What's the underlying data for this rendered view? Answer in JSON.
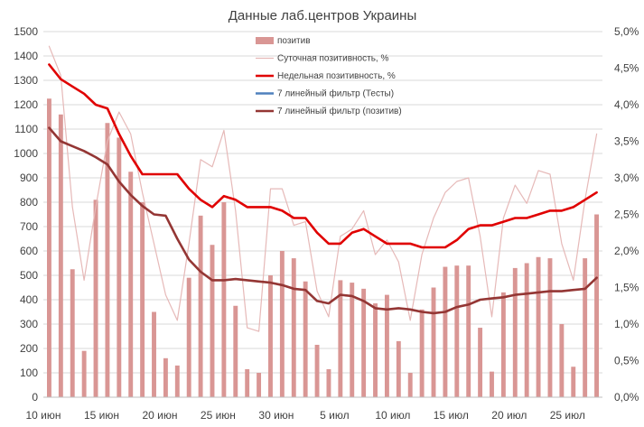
{
  "chart_data": {
    "type": "bar",
    "title": "Данные лаб.центров Украины",
    "x_tick_labels": [
      "10 июн",
      "15 июн",
      "20 июн",
      "25 июн",
      "30 июн",
      "5 июл",
      "10 июл",
      "15 июл",
      "20 июл",
      "25 июл"
    ],
    "x_tick_index": [
      0,
      5,
      10,
      15,
      20,
      25,
      30,
      35,
      40,
      45
    ],
    "ylim_left": [
      0,
      1500
    ],
    "ylim_right": [
      0,
      5.0
    ],
    "left_ticks": [
      "0",
      "100",
      "200",
      "300",
      "400",
      "500",
      "600",
      "700",
      "800",
      "900",
      "1000",
      "1100",
      "1200",
      "1300",
      "1400",
      "1500"
    ],
    "right_ticks": [
      "0,0%",
      "0,5%",
      "1,0%",
      "1,5%",
      "2,0%",
      "2,5%",
      "3,0%",
      "3,5%",
      "4,0%",
      "4,5%",
      "5,0%"
    ],
    "grid": true,
    "legend": {
      "position": "top-center",
      "entries": [
        {
          "label": "позитив",
          "kind": "bar",
          "color": "#d99694"
        },
        {
          "label": "Суточная позитивность, %",
          "kind": "line",
          "color": "#e6b9b8"
        },
        {
          "label": "Недельная позитивность, %",
          "kind": "line",
          "color": "#e00000"
        },
        {
          "label": "7 линейный фильтр (Тесты)",
          "kind": "line",
          "color": "#4f81bd"
        },
        {
          "label": "7 линейный фильтр (позитив)",
          "kind": "line",
          "color": "#943634"
        }
      ]
    },
    "series": [
      {
        "name": "позитив",
        "axis": "left",
        "values": [
          1225,
          1160,
          525,
          190,
          810,
          1125,
          1065,
          925,
          800,
          350,
          160,
          130,
          490,
          745,
          625,
          800,
          375,
          115,
          100,
          500,
          600,
          570,
          475,
          215,
          115,
          480,
          470,
          445,
          385,
          420,
          230,
          100,
          360,
          450,
          535,
          540,
          540,
          285,
          105,
          430,
          530,
          550,
          575,
          570,
          300,
          125,
          570,
          750
        ]
      },
      {
        "name": "Суточная позитивность, %",
        "axis": "right",
        "values": [
          4.8,
          4.4,
          2.6,
          1.6,
          2.6,
          3.5,
          3.9,
          3.6,
          2.8,
          2.1,
          1.4,
          1.05,
          2.1,
          3.25,
          3.15,
          3.65,
          2.55,
          0.95,
          0.9,
          2.85,
          2.85,
          2.35,
          2.4,
          1.45,
          1.1,
          2.2,
          2.3,
          2.55,
          1.95,
          2.15,
          1.85,
          1.05,
          1.95,
          2.45,
          2.8,
          2.95,
          3.0,
          2.2,
          1.1,
          2.45,
          2.9,
          2.65,
          3.1,
          3.05,
          2.1,
          1.6,
          2.7,
          3.6
        ]
      },
      {
        "name": "Недельная позитивность, %",
        "axis": "right",
        "values": [
          4.55,
          4.35,
          4.25,
          4.15,
          4.0,
          3.95,
          3.6,
          3.3,
          3.05,
          3.05,
          3.05,
          3.05,
          2.85,
          2.7,
          2.6,
          2.75,
          2.7,
          2.6,
          2.6,
          2.6,
          2.55,
          2.45,
          2.45,
          2.25,
          2.1,
          2.1,
          2.25,
          2.3,
          2.2,
          2.1,
          2.1,
          2.1,
          2.05,
          2.05,
          2.05,
          2.15,
          2.3,
          2.35,
          2.35,
          2.4,
          2.45,
          2.45,
          2.5,
          2.55,
          2.55,
          2.6,
          2.7,
          2.8
        ]
      },
      {
        "name": "7 линейный фильтр (Тесты)",
        "axis": "left",
        "values": []
      },
      {
        "name": "7 линейный фильтр (позитив)",
        "axis": "left",
        "values": [
          1105,
          1050,
          1030,
          1010,
          985,
          955,
          885,
          830,
          785,
          750,
          745,
          650,
          565,
          515,
          480,
          480,
          485,
          480,
          475,
          470,
          460,
          445,
          440,
          395,
          385,
          420,
          415,
          395,
          365,
          360,
          365,
          360,
          350,
          345,
          350,
          370,
          380,
          400,
          405,
          410,
          420,
          425,
          430,
          435,
          435,
          440,
          445,
          490
        ]
      }
    ]
  }
}
